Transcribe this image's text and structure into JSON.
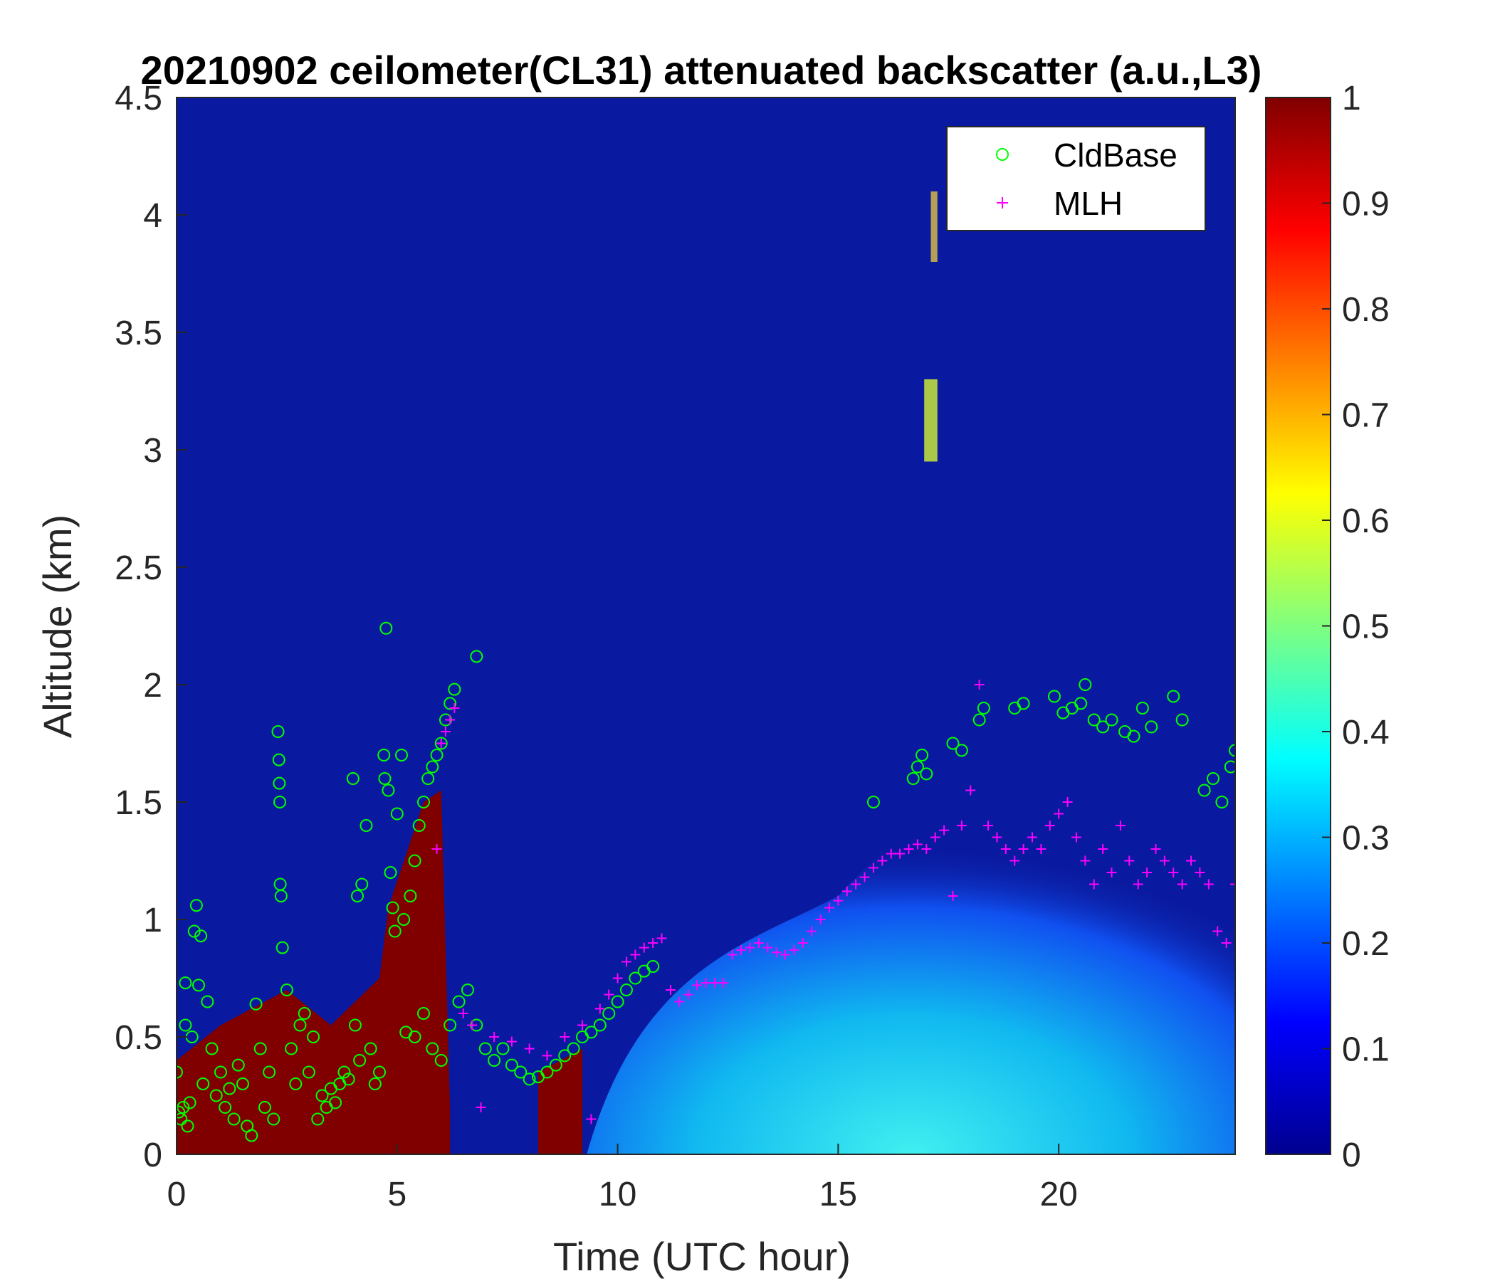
{
  "chart_data": {
    "type": "heatmap",
    "title": "20210902 ceilometer(CL31) attenuated backscatter (a.u.,L3)",
    "xlabel": "Time (UTC hour)",
    "ylabel": "Altitude (km)",
    "xlim": [
      0,
      24
    ],
    "ylim": [
      0,
      4.5
    ],
    "x_ticks": [
      "0",
      "5",
      "10",
      "15",
      "20"
    ],
    "x_tick_values": [
      0,
      5,
      10,
      15,
      20
    ],
    "y_ticks": [
      "0",
      "0.5",
      "1",
      "1.5",
      "2",
      "2.5",
      "3",
      "3.5",
      "4",
      "4.5"
    ],
    "y_tick_values": [
      0,
      0.5,
      1,
      1.5,
      2,
      2.5,
      3,
      3.5,
      4,
      4.5
    ],
    "colorbar": {
      "colormap": "jet",
      "range": [
        0,
        1
      ],
      "ticks": [
        "0",
        "0.1",
        "0.2",
        "0.3",
        "0.4",
        "0.5",
        "0.6",
        "0.7",
        "0.8",
        "0.9",
        "1"
      ],
      "tick_values": [
        0,
        0.1,
        0.2,
        0.3,
        0.4,
        0.5,
        0.6,
        0.7,
        0.8,
        0.9,
        1
      ]
    },
    "legend": {
      "location": "top-right",
      "entries": [
        "CldBase",
        "MLH"
      ]
    },
    "series": [
      {
        "name": "CldBase",
        "marker": "circle",
        "color": "#00ff00",
        "points": [
          [
            0.0,
            0.35
          ],
          [
            0.05,
            0.18
          ],
          [
            0.1,
            0.15
          ],
          [
            0.15,
            0.2
          ],
          [
            0.2,
            0.55
          ],
          [
            0.2,
            0.73
          ],
          [
            0.25,
            0.12
          ],
          [
            0.3,
            0.22
          ],
          [
            0.35,
            0.5
          ],
          [
            0.4,
            0.95
          ],
          [
            0.45,
            1.06
          ],
          [
            0.5,
            0.72
          ],
          [
            0.55,
            0.93
          ],
          [
            0.6,
            0.3
          ],
          [
            0.7,
            0.65
          ],
          [
            0.8,
            0.45
          ],
          [
            0.9,
            0.25
          ],
          [
            1.0,
            0.35
          ],
          [
            1.1,
            0.2
          ],
          [
            1.2,
            0.28
          ],
          [
            1.3,
            0.15
          ],
          [
            1.4,
            0.38
          ],
          [
            1.5,
            0.3
          ],
          [
            1.6,
            0.12
          ],
          [
            1.7,
            0.08
          ],
          [
            1.8,
            0.64
          ],
          [
            1.9,
            0.45
          ],
          [
            2.0,
            0.2
          ],
          [
            2.1,
            0.35
          ],
          [
            2.2,
            0.15
          ],
          [
            2.3,
            1.8
          ],
          [
            2.32,
            1.68
          ],
          [
            2.33,
            1.58
          ],
          [
            2.34,
            1.5
          ],
          [
            2.35,
            1.15
          ],
          [
            2.37,
            1.1
          ],
          [
            2.4,
            0.88
          ],
          [
            2.5,
            0.7
          ],
          [
            2.6,
            0.45
          ],
          [
            2.7,
            0.3
          ],
          [
            2.8,
            0.55
          ],
          [
            2.9,
            0.6
          ],
          [
            3.0,
            0.35
          ],
          [
            3.1,
            0.5
          ],
          [
            3.2,
            0.15
          ],
          [
            3.3,
            0.25
          ],
          [
            3.4,
            0.2
          ],
          [
            3.5,
            0.28
          ],
          [
            3.6,
            0.22
          ],
          [
            3.7,
            0.3
          ],
          [
            3.8,
            0.35
          ],
          [
            3.9,
            0.32
          ],
          [
            4.0,
            1.6
          ],
          [
            4.05,
            0.55
          ],
          [
            4.1,
            1.1
          ],
          [
            4.15,
            0.4
          ],
          [
            4.2,
            1.15
          ],
          [
            4.3,
            1.4
          ],
          [
            4.4,
            0.45
          ],
          [
            4.5,
            0.3
          ],
          [
            4.6,
            0.35
          ],
          [
            4.7,
            1.7
          ],
          [
            4.72,
            1.6
          ],
          [
            4.75,
            2.24
          ],
          [
            4.8,
            1.55
          ],
          [
            4.85,
            1.2
          ],
          [
            4.9,
            1.05
          ],
          [
            4.95,
            0.95
          ],
          [
            5.0,
            1.45
          ],
          [
            5.1,
            1.7
          ],
          [
            5.15,
            1.0
          ],
          [
            5.3,
            1.1
          ],
          [
            5.4,
            1.25
          ],
          [
            5.5,
            1.4
          ],
          [
            5.6,
            1.5
          ],
          [
            5.7,
            1.6
          ],
          [
            5.8,
            1.65
          ],
          [
            5.9,
            1.7
          ],
          [
            6.0,
            1.75
          ],
          [
            6.1,
            1.85
          ],
          [
            6.2,
            1.92
          ],
          [
            6.3,
            1.98
          ],
          [
            5.2,
            0.52
          ],
          [
            5.4,
            0.5
          ],
          [
            5.6,
            0.6
          ],
          [
            5.8,
            0.45
          ],
          [
            6.0,
            0.4
          ],
          [
            6.2,
            0.55
          ],
          [
            6.4,
            0.65
          ],
          [
            6.6,
            0.7
          ],
          [
            6.8,
            2.12
          ],
          [
            6.8,
            0.55
          ],
          [
            7.0,
            0.45
          ],
          [
            7.2,
            0.4
          ],
          [
            7.4,
            0.45
          ],
          [
            7.6,
            0.38
          ],
          [
            7.8,
            0.35
          ],
          [
            8.0,
            0.32
          ],
          [
            8.2,
            0.33
          ],
          [
            8.4,
            0.35
          ],
          [
            8.6,
            0.38
          ],
          [
            8.8,
            0.42
          ],
          [
            9.0,
            0.45
          ],
          [
            9.2,
            0.5
          ],
          [
            9.4,
            0.52
          ],
          [
            9.6,
            0.55
          ],
          [
            9.8,
            0.6
          ],
          [
            10.0,
            0.65
          ],
          [
            10.2,
            0.7
          ],
          [
            10.4,
            0.75
          ],
          [
            10.6,
            0.78
          ],
          [
            10.8,
            0.8
          ],
          [
            15.8,
            1.5
          ],
          [
            16.7,
            1.6
          ],
          [
            16.8,
            1.65
          ],
          [
            16.9,
            1.7
          ],
          [
            17.0,
            1.62
          ],
          [
            17.6,
            1.75
          ],
          [
            17.8,
            1.72
          ],
          [
            18.2,
            1.85
          ],
          [
            18.3,
            1.9
          ],
          [
            19.0,
            1.9
          ],
          [
            19.2,
            1.92
          ],
          [
            19.9,
            1.95
          ],
          [
            20.1,
            1.88
          ],
          [
            20.3,
            1.9
          ],
          [
            20.5,
            1.92
          ],
          [
            20.6,
            2.0
          ],
          [
            20.8,
            1.85
          ],
          [
            21.0,
            1.82
          ],
          [
            21.2,
            1.85
          ],
          [
            21.5,
            1.8
          ],
          [
            21.7,
            1.78
          ],
          [
            21.9,
            1.9
          ],
          [
            22.1,
            1.82
          ],
          [
            22.6,
            1.95
          ],
          [
            22.8,
            1.85
          ],
          [
            23.3,
            1.55
          ],
          [
            23.5,
            1.6
          ],
          [
            23.7,
            1.5
          ],
          [
            23.9,
            1.65
          ],
          [
            24.0,
            1.72
          ]
        ]
      },
      {
        "name": "MLH",
        "marker": "plus",
        "color": "#ff00ff",
        "points": [
          [
            5.9,
            1.3
          ],
          [
            6.0,
            1.75
          ],
          [
            6.1,
            1.8
          ],
          [
            6.2,
            1.85
          ],
          [
            6.3,
            1.9
          ],
          [
            6.5,
            0.6
          ],
          [
            6.7,
            0.55
          ],
          [
            6.9,
            0.2
          ],
          [
            7.2,
            0.5
          ],
          [
            7.6,
            0.48
          ],
          [
            8.0,
            0.45
          ],
          [
            8.4,
            0.42
          ],
          [
            8.8,
            0.5
          ],
          [
            9.2,
            0.55
          ],
          [
            9.4,
            0.15
          ],
          [
            9.6,
            0.62
          ],
          [
            9.8,
            0.68
          ],
          [
            10.0,
            0.75
          ],
          [
            10.2,
            0.82
          ],
          [
            10.4,
            0.85
          ],
          [
            10.6,
            0.88
          ],
          [
            10.8,
            0.9
          ],
          [
            11.0,
            0.92
          ],
          [
            11.2,
            0.7
          ],
          [
            11.4,
            0.65
          ],
          [
            11.6,
            0.68
          ],
          [
            11.8,
            0.72
          ],
          [
            12.0,
            0.73
          ],
          [
            12.2,
            0.73
          ],
          [
            12.4,
            0.73
          ],
          [
            12.6,
            0.85
          ],
          [
            12.8,
            0.87
          ],
          [
            13.0,
            0.88
          ],
          [
            13.2,
            0.9
          ],
          [
            13.4,
            0.88
          ],
          [
            13.6,
            0.86
          ],
          [
            13.8,
            0.85
          ],
          [
            14.0,
            0.87
          ],
          [
            14.2,
            0.9
          ],
          [
            14.4,
            0.95
          ],
          [
            14.6,
            1.0
          ],
          [
            14.8,
            1.05
          ],
          [
            15.0,
            1.08
          ],
          [
            15.2,
            1.12
          ],
          [
            15.4,
            1.15
          ],
          [
            15.6,
            1.18
          ],
          [
            15.8,
            1.22
          ],
          [
            16.0,
            1.25
          ],
          [
            16.2,
            1.28
          ],
          [
            16.4,
            1.28
          ],
          [
            16.6,
            1.3
          ],
          [
            16.8,
            1.32
          ],
          [
            17.0,
            1.3
          ],
          [
            17.2,
            1.35
          ],
          [
            17.4,
            1.38
          ],
          [
            17.6,
            1.1
          ],
          [
            17.8,
            1.4
          ],
          [
            18.0,
            1.55
          ],
          [
            18.2,
            2.0
          ],
          [
            18.4,
            1.4
          ],
          [
            18.6,
            1.35
          ],
          [
            18.8,
            1.3
          ],
          [
            19.0,
            1.25
          ],
          [
            19.2,
            1.3
          ],
          [
            19.4,
            1.35
          ],
          [
            19.6,
            1.3
          ],
          [
            19.8,
            1.4
          ],
          [
            20.0,
            1.45
          ],
          [
            20.2,
            1.5
          ],
          [
            20.4,
            1.35
          ],
          [
            20.6,
            1.25
          ],
          [
            20.8,
            1.15
          ],
          [
            21.0,
            1.3
          ],
          [
            21.2,
            1.2
          ],
          [
            21.4,
            1.4
          ],
          [
            21.6,
            1.25
          ],
          [
            21.8,
            1.15
          ],
          [
            22.0,
            1.2
          ],
          [
            22.2,
            1.3
          ],
          [
            22.4,
            1.25
          ],
          [
            22.6,
            1.2
          ],
          [
            22.8,
            1.15
          ],
          [
            23.0,
            1.25
          ],
          [
            23.2,
            1.2
          ],
          [
            23.4,
            1.15
          ],
          [
            23.6,
            0.95
          ],
          [
            23.8,
            0.9
          ],
          [
            24.0,
            1.15
          ]
        ]
      }
    ]
  }
}
